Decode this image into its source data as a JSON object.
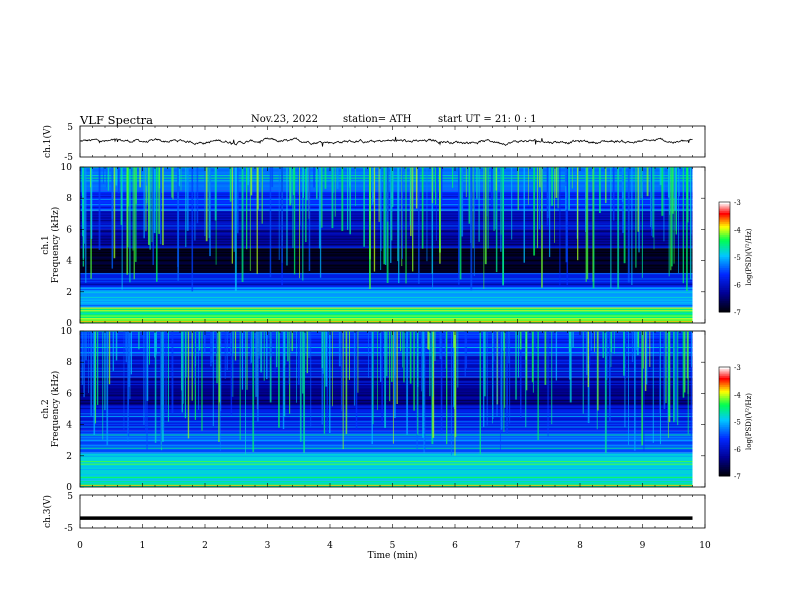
{
  "header": {
    "title": "VLF  Spectra",
    "date": "Nov.23, 2022",
    "station": "station= ATH",
    "start_ut": "start  UT  =    21: 0  : 1"
  },
  "chart_data": [
    {
      "type": "line",
      "panel": "ch1-waveform",
      "ylabel": "ch.1(V)",
      "yticks": [
        "5",
        "-5"
      ],
      "ylim": [
        -5,
        5
      ],
      "x_range_min": [
        0,
        9.8
      ],
      "series": [
        {
          "values_description_free": true,
          "mean": 0,
          "approx_amplitude": 0.6
        }
      ],
      "grid": false
    },
    {
      "type": "heatmap",
      "panel": "ch1-spectrogram",
      "ylabel": "ch.1\nFrequency (kHz)",
      "ylabel_lines": [
        "ch.1",
        "Frequency (kHz)"
      ],
      "yticks": [
        "0",
        "2",
        "4",
        "6",
        "8",
        "10"
      ],
      "ylim": [
        0,
        10
      ],
      "xlim": [
        0,
        10
      ],
      "colorbar": {
        "label": "log(PSD)(V²/Hz)",
        "ticks": [
          "-3",
          "-4",
          "-5",
          "-6",
          "-7"
        ],
        "range": [
          -7,
          -3
        ]
      },
      "bands_khz": [
        {
          "from": 0,
          "to": 0.3,
          "level": -4.2
        },
        {
          "from": 0.3,
          "to": 1.0,
          "level": -4.5
        },
        {
          "from": 1.0,
          "to": 2.3,
          "level": -5.1
        },
        {
          "from": 2.3,
          "to": 3.2,
          "level": -5.8
        },
        {
          "from": 3.2,
          "to": 4.8,
          "level": -6.8
        },
        {
          "from": 4.8,
          "to": 6.0,
          "level": -6.2
        },
        {
          "from": 6.0,
          "to": 7.2,
          "level": -6.0
        },
        {
          "from": 7.2,
          "to": 8.5,
          "level": -5.6
        },
        {
          "from": 8.5,
          "to": 10.0,
          "level": -5.3
        }
      ]
    },
    {
      "type": "heatmap",
      "panel": "ch2-spectrogram",
      "ylabel": "ch.2\nFrequency (kHz)",
      "ylabel_lines": [
        "ch.2",
        "Frequency (kHz)"
      ],
      "yticks": [
        "0",
        "2",
        "4",
        "6",
        "8",
        "10"
      ],
      "ylim": [
        0,
        10
      ],
      "xlim": [
        0,
        10
      ],
      "colorbar": {
        "label": "log(PSD)(V²/Hz)",
        "ticks": [
          "-3",
          "-4",
          "-5",
          "-6",
          "-7"
        ],
        "range": [
          -7,
          -3
        ]
      },
      "bands_khz": [
        {
          "from": 0,
          "to": 0.4,
          "level": -4.6
        },
        {
          "from": 0.4,
          "to": 2.2,
          "level": -4.8
        },
        {
          "from": 2.2,
          "to": 3.6,
          "level": -5.4
        },
        {
          "from": 3.6,
          "to": 5.2,
          "level": -5.8
        },
        {
          "from": 5.2,
          "to": 7.0,
          "level": -6.3
        },
        {
          "from": 7.0,
          "to": 8.5,
          "level": -6.0
        },
        {
          "from": 8.5,
          "to": 10.0,
          "level": -5.6
        }
      ]
    },
    {
      "type": "line",
      "panel": "ch3-waveform",
      "ylabel": "ch.3(V)",
      "yticks": [
        "5",
        "-5"
      ],
      "ylim": [
        -5,
        5
      ],
      "series": [
        {
          "constant_value": -2
        }
      ],
      "xlabel": "Time  (min)",
      "xticks": [
        "0",
        "1",
        "2",
        "3",
        "4",
        "5",
        "6",
        "7",
        "8",
        "9",
        "10"
      ],
      "xlim": [
        0,
        10
      ]
    }
  ],
  "colors": {
    "colormap": [
      "#000000",
      "#0000ff",
      "#00c8ff",
      "#00ff00",
      "#ffff00",
      "#ff0000",
      "#ffffff"
    ],
    "line": "#000000"
  }
}
